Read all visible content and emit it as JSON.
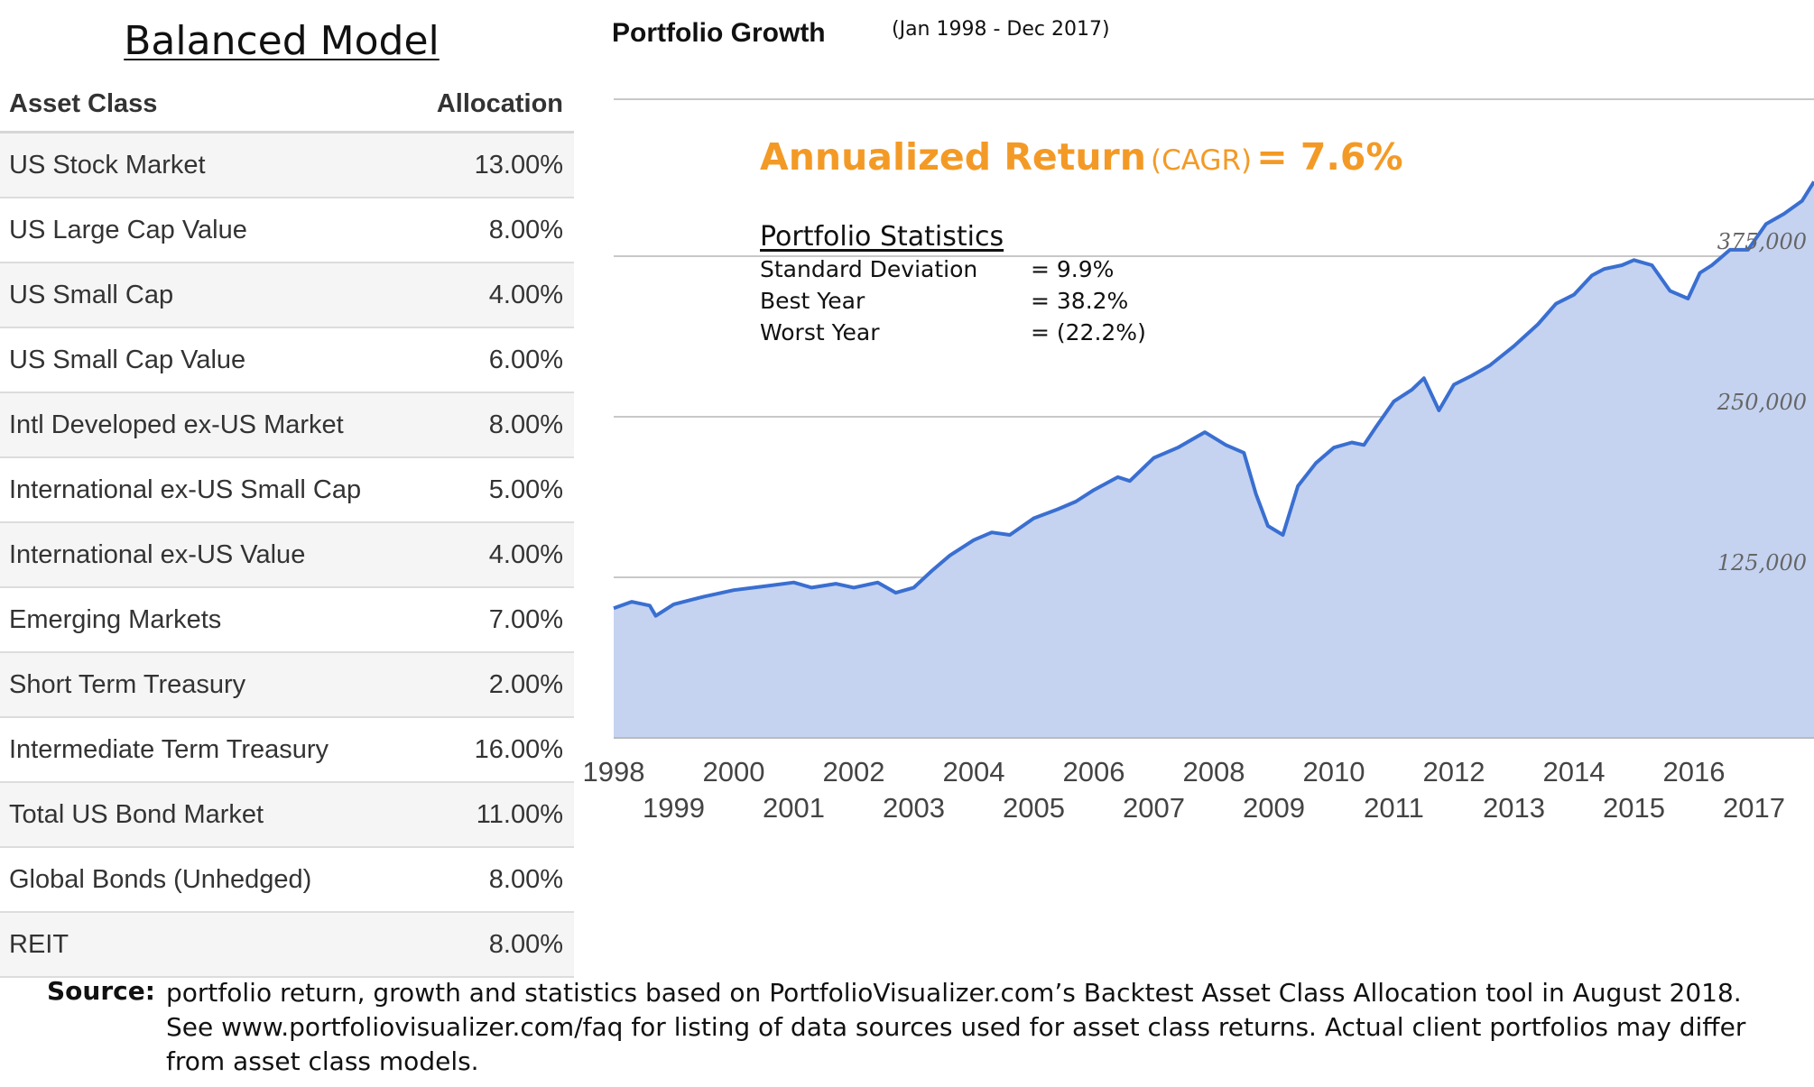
{
  "model_title": "Balanced Model",
  "table": {
    "headers": [
      "Asset Class",
      "Allocation"
    ],
    "rows": [
      [
        "US Stock Market",
        "13.00%"
      ],
      [
        "US Large Cap Value",
        "8.00%"
      ],
      [
        "US Small Cap",
        "4.00%"
      ],
      [
        "US Small Cap Value",
        "6.00%"
      ],
      [
        "Intl Developed ex-US Market",
        "8.00%"
      ],
      [
        "International ex-US Small Cap",
        "5.00%"
      ],
      [
        "International ex-US Value",
        "4.00%"
      ],
      [
        "Emerging Markets",
        "7.00%"
      ],
      [
        "Short Term Treasury",
        "2.00%"
      ],
      [
        "Intermediate Term Treasury",
        "16.00%"
      ],
      [
        "Total US Bond Market",
        "11.00%"
      ],
      [
        "Global Bonds (Unhedged)",
        "8.00%"
      ],
      [
        "REIT",
        "8.00%"
      ]
    ]
  },
  "annotation": {
    "return_label": "Annualized Return",
    "cagr_label": "(CAGR)",
    "return_value": "= 7.6%",
    "stats_heading": "Portfolio Statistics",
    "stats": [
      {
        "label": "Standard Deviation",
        "value": "= 9.9%"
      },
      {
        "label": "Best Year",
        "value": "= 38.2%"
      },
      {
        "label": "Worst Year",
        "value": "= (22.2%)"
      }
    ]
  },
  "source": {
    "label": "Source:",
    "text": "portfolio return, growth and statistics based on PortfolioVisualizer.com’s Backtest Asset Class Allocation tool in August 2018. See www.portfoliovisualizer.com/faq for listing of data sources used for asset class returns. Actual client portfolios may differ from asset class models."
  },
  "colors": {
    "line": "#3a6fd1",
    "fill": "#c5d3f1",
    "accent": "#f39a26"
  },
  "chart_data": {
    "type": "area",
    "title": "Portfolio Growth",
    "subtitle": "(Jan 1998 - Dec 2017)",
    "xlabel": "",
    "ylabel": "",
    "xlim": [
      1998,
      2018
    ],
    "ylim": [
      0,
      500000
    ],
    "y_ticks": [
      125000,
      250000,
      375000
    ],
    "y_tick_labels": [
      "125,000",
      "250,000",
      "375,000"
    ],
    "x_ticks": [
      1998,
      1999,
      2000,
      2001,
      2002,
      2003,
      2004,
      2005,
      2006,
      2007,
      2008,
      2009,
      2010,
      2011,
      2012,
      2013,
      2014,
      2015,
      2016,
      2017
    ],
    "x_tick_labels": [
      "1998",
      "1999",
      "2000",
      "2001",
      "2002",
      "2003",
      "2004",
      "2005",
      "2006",
      "2007",
      "2008",
      "2009",
      "2010",
      "2011",
      "2012",
      "2013",
      "2014",
      "2015",
      "2016",
      "2017"
    ],
    "grid": true,
    "legend": "none",
    "x": [
      1998.0,
      1998.3,
      1998.6,
      1998.7,
      1999.0,
      1999.5,
      2000.0,
      2000.5,
      2001.0,
      2001.3,
      2001.7,
      2002.0,
      2002.4,
      2002.7,
      2003.0,
      2003.3,
      2003.6,
      2004.0,
      2004.3,
      2004.6,
      2005.0,
      2005.4,
      2005.7,
      2006.0,
      2006.4,
      2006.6,
      2007.0,
      2007.4,
      2007.7,
      2007.85,
      2008.2,
      2008.5,
      2008.7,
      2008.9,
      2009.15,
      2009.4,
      2009.7,
      2010.0,
      2010.3,
      2010.5,
      2010.7,
      2011.0,
      2011.3,
      2011.5,
      2011.75,
      2012.0,
      2012.3,
      2012.6,
      2013.0,
      2013.4,
      2013.7,
      2014.0,
      2014.3,
      2014.5,
      2014.8,
      2015.0,
      2015.3,
      2015.6,
      2015.9,
      2016.1,
      2016.3,
      2016.6,
      2016.9,
      2017.2,
      2017.5,
      2017.8,
      2018.0
    ],
    "values": [
      101000,
      106000,
      103000,
      95000,
      104000,
      110000,
      115000,
      118000,
      121000,
      117000,
      120000,
      117000,
      121000,
      113000,
      117000,
      130000,
      142000,
      154000,
      160000,
      158000,
      171000,
      178000,
      184000,
      193000,
      203000,
      200000,
      218000,
      226000,
      234000,
      238000,
      228000,
      222000,
      190000,
      165000,
      158000,
      196000,
      214000,
      226000,
      230000,
      228000,
      242000,
      262000,
      271000,
      280000,
      255000,
      275000,
      282000,
      290000,
      305000,
      322000,
      338000,
      345000,
      360000,
      365000,
      368000,
      372000,
      368000,
      348000,
      342000,
      362000,
      368000,
      380000,
      380000,
      400000,
      408000,
      418000,
      433000
    ]
  }
}
